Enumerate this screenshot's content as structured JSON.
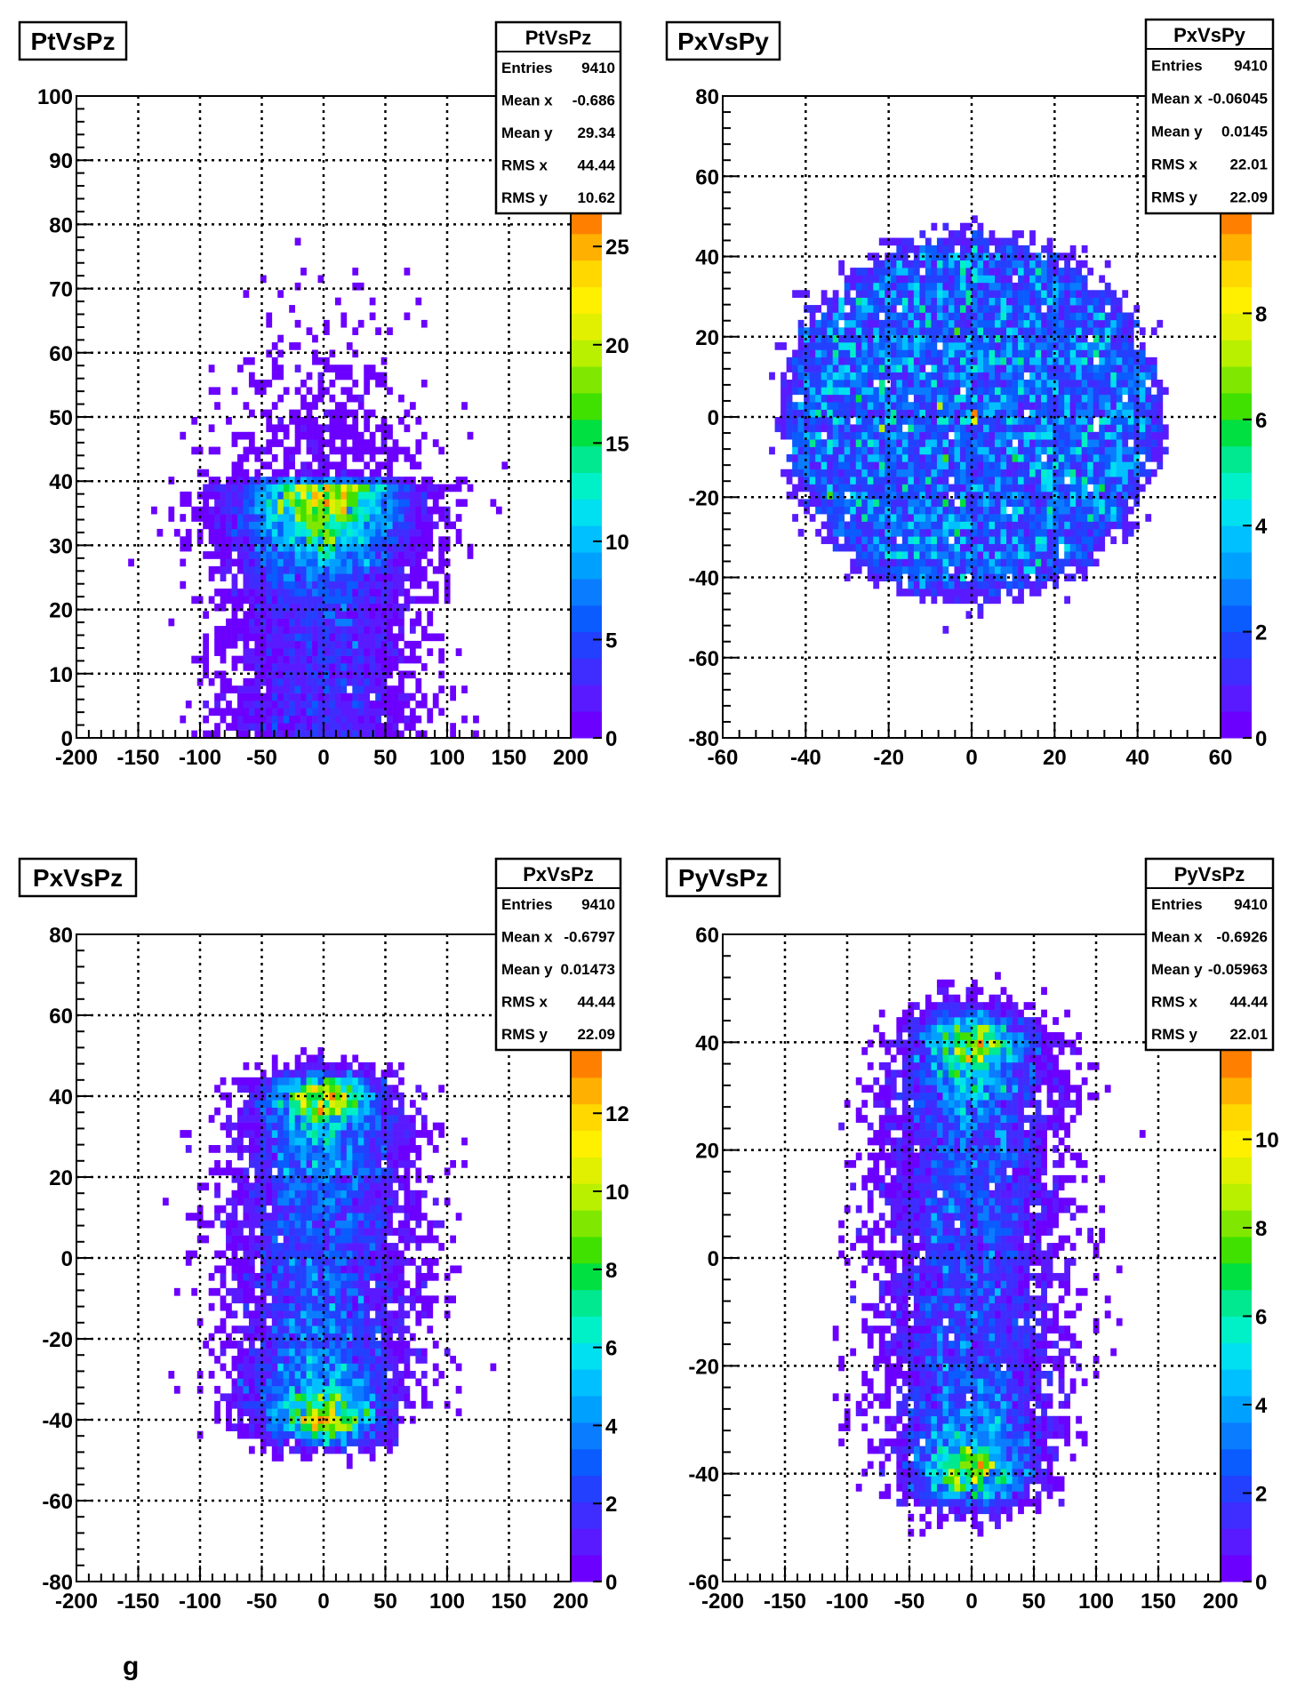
{
  "chart_data": [
    {
      "type": "heatmap",
      "title": "PtVsPz",
      "xlim": [
        -200,
        200
      ],
      "ylim": [
        0,
        100
      ],
      "xticks": [
        "-200",
        "-150",
        "-100",
        "-50",
        "0",
        "50",
        "100",
        "150",
        "200"
      ],
      "yticks": [
        "0",
        "10",
        "20",
        "30",
        "40",
        "50",
        "60",
        "70",
        "80",
        "90",
        "100"
      ],
      "grid": true,
      "colorbar": {
        "range": [
          0,
          27
        ],
        "ticks": [
          "0",
          "5",
          "10",
          "15",
          "20",
          "25"
        ]
      },
      "stats": {
        "title": "PtVsPz",
        "rows": [
          {
            "label": "Entries",
            "value": "9410"
          },
          {
            "label": "Mean x",
            "value": "-0.686"
          },
          {
            "label": "Mean y",
            "value": "29.34"
          },
          {
            "label": "RMS x",
            "value": "44.44"
          },
          {
            "label": "RMS y",
            "value": "10.62"
          }
        ]
      },
      "distribution": {
        "x_mean": -0.686,
        "x_rms": 44.44,
        "y_mean": 29.34,
        "y_rms": 10.62,
        "peak": 27
      }
    },
    {
      "type": "heatmap",
      "title": "PxVsPy",
      "xlim": [
        -60,
        60
      ],
      "ylim": [
        -80,
        80
      ],
      "xticks": [
        "-60",
        "-40",
        "-20",
        "0",
        "20",
        "40",
        "60"
      ],
      "yticks": [
        "-80",
        "-60",
        "-40",
        "-20",
        "0",
        "20",
        "40",
        "60",
        "80"
      ],
      "grid": true,
      "colorbar": {
        "range": [
          0,
          10
        ],
        "ticks": [
          "0",
          "2",
          "4",
          "6",
          "8"
        ]
      },
      "stats": {
        "title": "PxVsPy",
        "rows": [
          {
            "label": "Entries",
            "value": "9410"
          },
          {
            "label": "Mean x",
            "value": "-0.06045"
          },
          {
            "label": "Mean y",
            "value": "0.0145"
          },
          {
            "label": "RMS x",
            "value": "22.01"
          },
          {
            "label": "RMS y",
            "value": "22.09"
          }
        ]
      },
      "distribution": {
        "x_mean": -0.06045,
        "x_rms": 22.01,
        "y_mean": 0.0145,
        "y_rms": 22.09,
        "peak": 10
      }
    },
    {
      "type": "heatmap",
      "title": "PxVsPz",
      "xlim": [
        -200,
        200
      ],
      "ylim": [
        -80,
        80
      ],
      "xticks": [
        "-200",
        "-150",
        "-100",
        "-50",
        "0",
        "50",
        "100",
        "150",
        "200"
      ],
      "yticks": [
        "-80",
        "-60",
        "-40",
        "-20",
        "0",
        "20",
        "40",
        "60",
        "80"
      ],
      "grid": true,
      "colorbar": {
        "range": [
          0,
          13.6
        ],
        "ticks": [
          "0",
          "2",
          "4",
          "6",
          "8",
          "10",
          "12"
        ]
      },
      "stats": {
        "title": "PxVsPz",
        "rows": [
          {
            "label": "Entries",
            "value": "9410"
          },
          {
            "label": "Mean x",
            "value": "-0.6797"
          },
          {
            "label": "Mean y",
            "value": "0.01473"
          },
          {
            "label": "RMS x",
            "value": "44.44"
          },
          {
            "label": "RMS y",
            "value": "22.09"
          }
        ]
      },
      "distribution": {
        "x_mean": -0.6797,
        "x_rms": 44.44,
        "y_mean": 0.01473,
        "y_rms": 22.09,
        "peak": 13.6
      }
    },
    {
      "type": "heatmap",
      "title": "PyVsPz",
      "xlim": [
        -200,
        200
      ],
      "ylim": [
        -60,
        60
      ],
      "xticks": [
        "-200",
        "-150",
        "-100",
        "-50",
        "0",
        "50",
        "100",
        "150",
        "200"
      ],
      "yticks": [
        "-60",
        "-40",
        "-20",
        "0",
        "20",
        "40",
        "60"
      ],
      "grid": true,
      "colorbar": {
        "range": [
          0,
          12
        ],
        "ticks": [
          "0",
          "2",
          "4",
          "6",
          "8",
          "10"
        ]
      },
      "stats": {
        "title": "PyVsPz",
        "rows": [
          {
            "label": "Entries",
            "value": "9410"
          },
          {
            "label": "Mean x",
            "value": "-0.6926"
          },
          {
            "label": "Mean y",
            "value": "-0.05963"
          },
          {
            "label": "RMS x",
            "value": "44.44"
          },
          {
            "label": "RMS y",
            "value": "22.01"
          }
        ]
      },
      "distribution": {
        "x_mean": -0.6926,
        "x_rms": 44.44,
        "y_mean": -0.05963,
        "y_rms": 22.01,
        "peak": 12
      }
    }
  ],
  "footer_fragment": "g"
}
